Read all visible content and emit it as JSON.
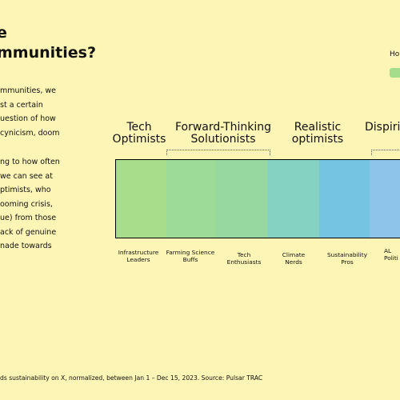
{
  "title": {
    "line1": "e",
    "line2": "mmunities?"
  },
  "intro": {
    "lines": [
      "mmunities, we",
      "st a certain",
      "uestion of how",
      "cynicism, doom"
    ]
  },
  "body": {
    "lines": [
      "ng to how often",
      "we can see at",
      "ptimists, who",
      "ooming crisis,",
      "ue) from those",
      "ack of genuine",
      "nade towards"
    ]
  },
  "legend": {
    "title": "Ho",
    "swatch_color": "#a4dd8c"
  },
  "categories": [
    {
      "label": "Tech\nOptimists"
    },
    {
      "label": "Forward-Thinking\nSolutionists"
    },
    {
      "label": "Realistic\noptimists"
    },
    {
      "label": "Dispiriti"
    }
  ],
  "segments": [
    {
      "label": "Infrastructure\nLeaders",
      "color": "#a8de8b"
    },
    {
      "label": "Farming Science\nBuffs",
      "color": "#9cdb98"
    },
    {
      "label": "Tech\nEnthusiasts",
      "color": "#97d8a0"
    },
    {
      "label": "Climate\nNerds",
      "color": "#86d2c2"
    },
    {
      "label": "Sustainability\nPros",
      "color": "#74c4e2"
    },
    {
      "label": "AL\nPoliti",
      "color": "#8ec4ea"
    }
  ],
  "footer": {
    "text": "ds sustainability on X, normalized, between Jan 1 – Dec 15, 2023. Source: Pulsar TRAC"
  }
}
